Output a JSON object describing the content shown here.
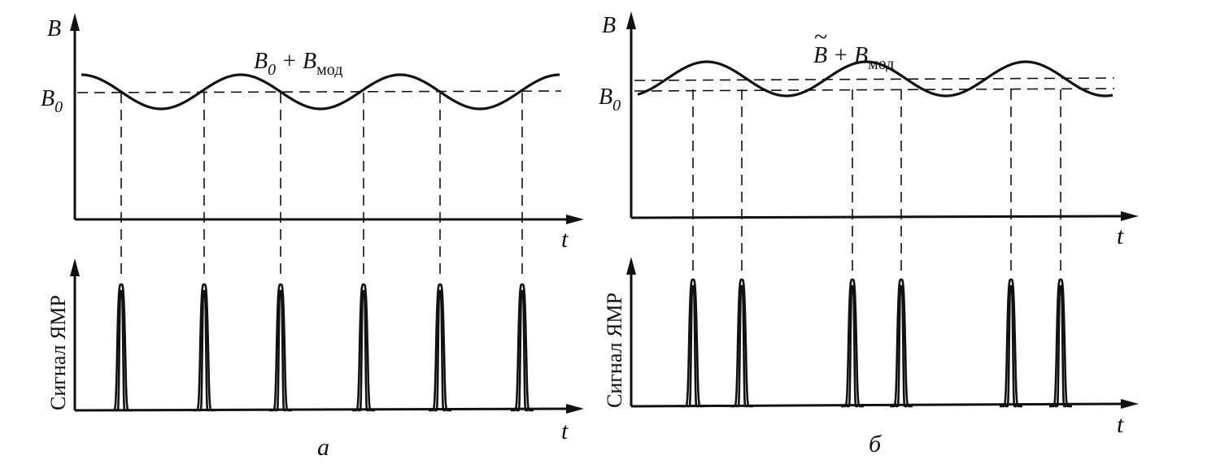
{
  "panels": [
    {
      "id": "a",
      "caption": "а",
      "top_axis_label": "B",
      "time_label": "t",
      "baseline_label": "B",
      "baseline_sub": "0",
      "curve_label_main": "B",
      "curve_label_main_sub": "0",
      "curve_label_rest": " + B",
      "curve_label_sub": "мод",
      "bottom_axis_label": "Сигнал ЯМР",
      "bottom_time_label": "t"
    },
    {
      "id": "b",
      "caption": "б",
      "top_axis_label": "B",
      "time_label": "t",
      "baseline_label": "B",
      "baseline_sub": "0",
      "curve_label_main": "B",
      "curve_label_main_tilde": "~",
      "curve_label_rest": " + B",
      "curve_label_sub": "мод",
      "bottom_axis_label": "Сигнал ЯМР",
      "bottom_time_label": "t"
    }
  ]
}
